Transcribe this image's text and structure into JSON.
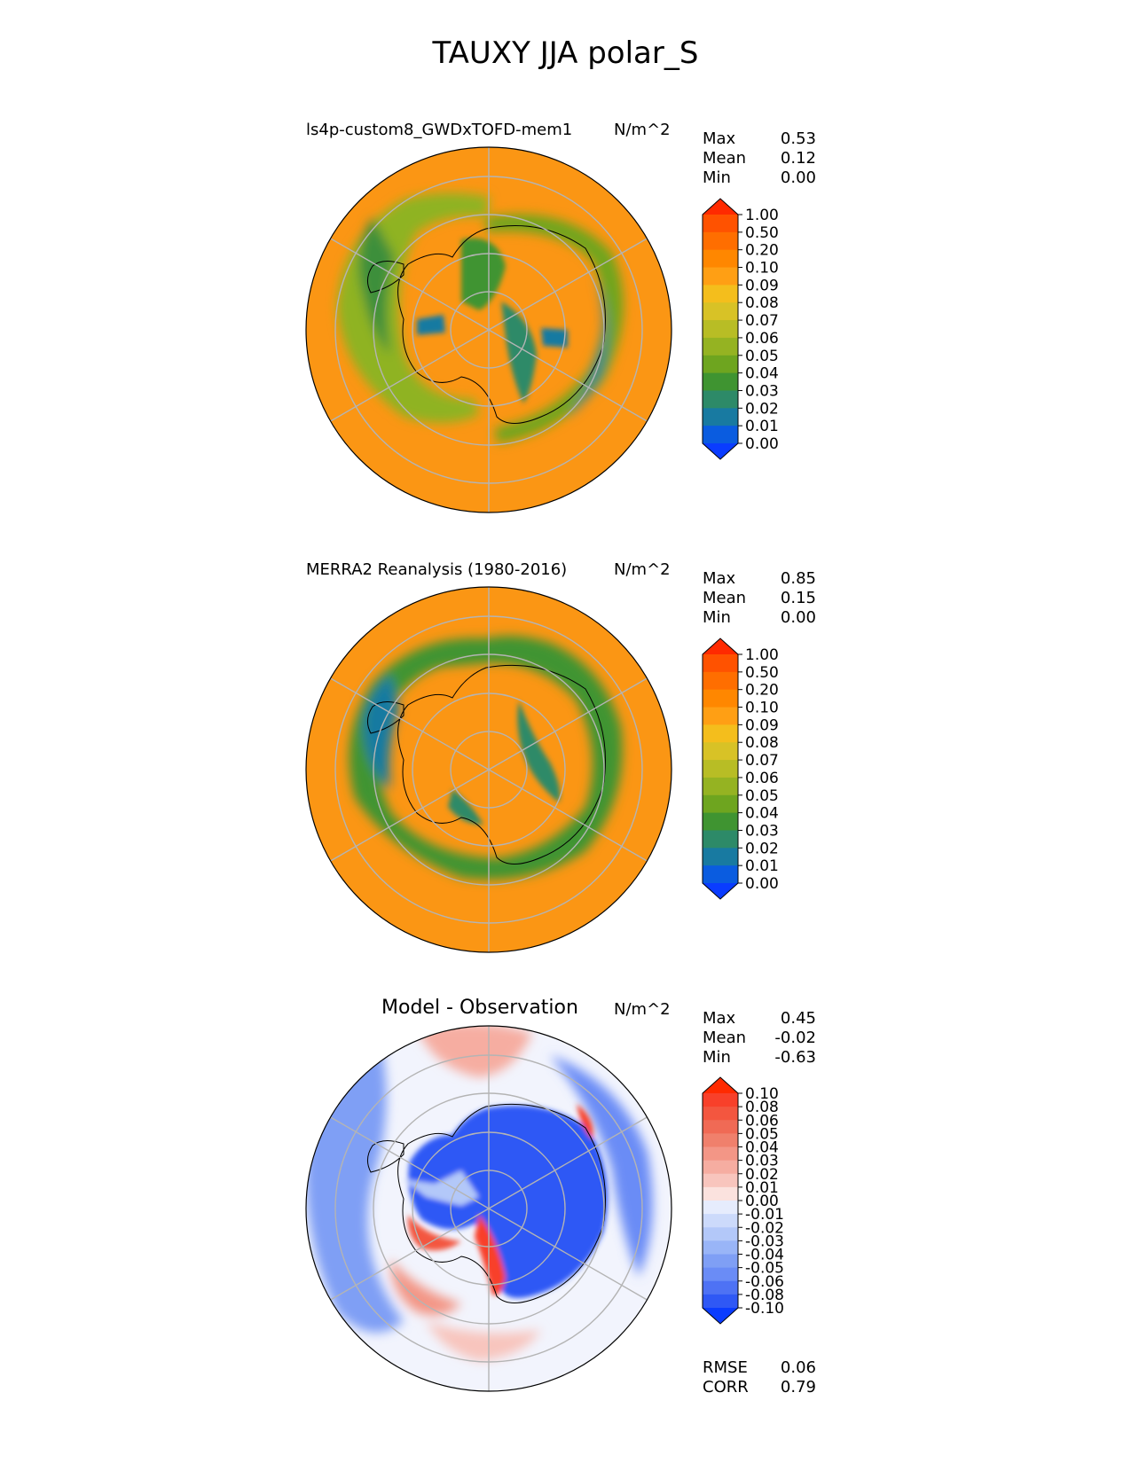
{
  "title": "TAUXY JJA polar_S",
  "chart_data": [
    {
      "type": "polar-contour-map",
      "projection": "south polar stereographic",
      "title": "ls4p-custom8_GWDxTOFD-mem1",
      "units": "N/m^2",
      "stats": [
        {
          "label": "Max",
          "value": "0.53"
        },
        {
          "label": "Mean",
          "value": "0.12"
        },
        {
          "label": "Min",
          "value": "0.00"
        }
      ],
      "colorbar_levels": [
        "1.00",
        "0.50",
        "0.20",
        "0.10",
        "0.09",
        "0.08",
        "0.07",
        "0.06",
        "0.05",
        "0.04",
        "0.03",
        "0.02",
        "0.01",
        "0.00"
      ],
      "colorbar_colors": [
        "#ff2a00",
        "#ff5200",
        "#ff6e00",
        "#ff8700",
        "#ff9f14",
        "#f4be1c",
        "#d8c226",
        "#b8bd25",
        "#95b322",
        "#6ea51f",
        "#3f9431",
        "#2d8a68",
        "#187aa1",
        "#0a5ce0",
        "#0a3cff"
      ]
    },
    {
      "type": "polar-contour-map",
      "projection": "south polar stereographic",
      "title": "MERRA2 Reanalysis (1980-2016)",
      "units": "N/m^2",
      "stats": [
        {
          "label": "Max",
          "value": "0.85"
        },
        {
          "label": "Mean",
          "value": "0.15"
        },
        {
          "label": "Min",
          "value": "0.00"
        }
      ],
      "colorbar_levels": [
        "1.00",
        "0.50",
        "0.20",
        "0.10",
        "0.09",
        "0.08",
        "0.07",
        "0.06",
        "0.05",
        "0.04",
        "0.03",
        "0.02",
        "0.01",
        "0.00"
      ],
      "colorbar_colors": [
        "#ff2a00",
        "#ff5200",
        "#ff6e00",
        "#ff8700",
        "#ff9f14",
        "#f4be1c",
        "#d8c226",
        "#b8bd25",
        "#95b322",
        "#6ea51f",
        "#3f9431",
        "#2d8a68",
        "#187aa1",
        "#0a5ce0",
        "#0a3cff"
      ]
    },
    {
      "type": "polar-contour-map",
      "projection": "south polar stereographic",
      "title": "Model - Observation",
      "units": "N/m^2",
      "stats": [
        {
          "label": "Max",
          "value": "0.45"
        },
        {
          "label": "Mean",
          "value": "-0.02"
        },
        {
          "label": "Min",
          "value": "-0.63"
        }
      ],
      "colorbar_levels": [
        "0.10",
        "0.08",
        "0.06",
        "0.05",
        "0.04",
        "0.03",
        "0.02",
        "0.01",
        "0.00",
        "-0.01",
        "-0.02",
        "-0.03",
        "-0.04",
        "-0.05",
        "-0.06",
        "-0.08",
        "-0.10"
      ],
      "colorbar_colors": [
        "#ff2a00",
        "#f8402a",
        "#f3563f",
        "#f06a55",
        "#f0806c",
        "#f39686",
        "#f6ada1",
        "#f8c5bd",
        "#fbe2de",
        "#e6ecfd",
        "#ccdafb",
        "#b3c8f9",
        "#99b5f7",
        "#7f9ff5",
        "#6a8cf6",
        "#4e72f4",
        "#2f58f5",
        "#0a3cff"
      ],
      "metrics": [
        {
          "label": "RMSE",
          "value": "0.06"
        },
        {
          "label": "CORR",
          "value": "0.79"
        }
      ]
    }
  ]
}
